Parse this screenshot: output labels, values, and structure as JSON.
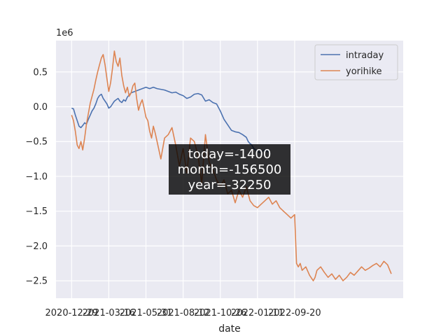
{
  "chart_data": {
    "type": "line",
    "xlabel": "date",
    "ylabel": "",
    "y_scale_label": "1e6",
    "y_scale": 1000000,
    "ylim": [
      -2.75,
      0.95
    ],
    "xlim": [
      -0.42,
      8.92
    ],
    "yticks": [
      0.5,
      0.0,
      -0.5,
      -1.0,
      -1.5,
      -2.0,
      -2.5
    ],
    "ytick_labels": [
      "0.5",
      "0.0",
      "−0.5",
      "−1.0",
      "−1.5",
      "−2.0",
      "−2.5"
    ],
    "x_ticks": [
      0,
      1,
      2,
      3,
      4,
      5,
      6
    ],
    "x_tick_labels": [
      "2020-12-29",
      "2021-03-16",
      "2021-05-31",
      "2021-08-12",
      "2021-10-26",
      "2022-01-11",
      "2022-09-20"
    ],
    "grid": true,
    "legend": "top-right",
    "annotation": {
      "lines": [
        "today=-1400",
        "month=-156500",
        "year=-32250"
      ],
      "position": "center"
    },
    "series": [
      {
        "name": "intraday",
        "color": "#4c72b0",
        "x": [
          0,
          0.05,
          0.1,
          0.15,
          0.2,
          0.25,
          0.3,
          0.35,
          0.4,
          0.45,
          0.5,
          0.55,
          0.6,
          0.65,
          0.7,
          0.75,
          0.8,
          0.85,
          0.9,
          0.95,
          1.0,
          1.05,
          1.1,
          1.15,
          1.2,
          1.25,
          1.3,
          1.35,
          1.4,
          1.45,
          1.5,
          1.6,
          1.7,
          1.8,
          1.9,
          1.95,
          2.0,
          2.1,
          2.2,
          2.3,
          2.4,
          2.5,
          2.6,
          2.7,
          2.8,
          2.9,
          3.0,
          3.1,
          3.2,
          3.3,
          3.4,
          3.5,
          3.6,
          3.7,
          3.8,
          3.9,
          4.0,
          4.1,
          4.2,
          4.3,
          4.4,
          4.5,
          4.6,
          4.7,
          4.75,
          4.8,
          4.85,
          4.9,
          4.95,
          5.0,
          5.05,
          5.1,
          5.15,
          5.2,
          5.25,
          5.3
        ],
        "y": [
          -0.02,
          -0.03,
          -0.12,
          -0.2,
          -0.28,
          -0.3,
          -0.27,
          -0.23,
          -0.25,
          -0.18,
          -0.12,
          -0.06,
          -0.02,
          0.04,
          0.12,
          0.16,
          0.18,
          0.12,
          0.08,
          0.04,
          -0.02,
          0.0,
          0.04,
          0.08,
          0.1,
          0.12,
          0.08,
          0.06,
          0.1,
          0.08,
          0.14,
          0.2,
          0.22,
          0.24,
          0.26,
          0.27,
          0.28,
          0.26,
          0.28,
          0.26,
          0.25,
          0.24,
          0.22,
          0.2,
          0.21,
          0.18,
          0.16,
          0.12,
          0.14,
          0.18,
          0.19,
          0.17,
          0.08,
          0.1,
          0.06,
          0.04,
          -0.06,
          -0.18,
          -0.26,
          -0.34,
          -0.36,
          -0.37,
          -0.4,
          -0.44,
          -0.5,
          -0.53,
          -0.55,
          -0.6,
          -0.62,
          -0.64,
          -0.66,
          -0.65,
          -0.63,
          -0.62,
          -0.64,
          -0.65
        ]
      },
      {
        "name": "yorihike",
        "color": "#dd8452",
        "x": [
          0,
          0.05,
          0.1,
          0.15,
          0.2,
          0.25,
          0.3,
          0.35,
          0.4,
          0.45,
          0.5,
          0.6,
          0.65,
          0.7,
          0.75,
          0.8,
          0.85,
          0.9,
          0.95,
          1.0,
          1.05,
          1.1,
          1.15,
          1.2,
          1.25,
          1.3,
          1.35,
          1.4,
          1.45,
          1.5,
          1.55,
          1.6,
          1.65,
          1.7,
          1.75,
          1.8,
          1.85,
          1.9,
          1.95,
          2.0,
          2.05,
          2.1,
          2.15,
          2.2,
          2.25,
          2.3,
          2.4,
          2.5,
          2.6,
          2.7,
          2.8,
          2.9,
          3.0,
          3.1,
          3.2,
          3.3,
          3.4,
          3.5,
          3.6,
          3.7,
          3.8,
          3.9,
          4.0,
          4.1,
          4.2,
          4.3,
          4.4,
          4.5,
          4.6,
          4.7,
          4.8,
          4.9,
          5.0,
          5.1,
          5.2,
          5.3,
          5.4,
          5.5,
          5.6,
          5.7,
          5.8,
          5.9,
          6.0,
          6.05,
          6.1,
          6.15,
          6.2,
          6.3,
          6.4,
          6.5,
          6.55,
          6.6,
          6.7,
          6.8,
          6.9,
          7.0,
          7.1,
          7.2,
          7.3,
          7.4,
          7.5,
          7.6,
          7.7,
          7.8,
          7.9,
          8.0,
          8.1,
          8.2,
          8.3,
          8.4,
          8.5,
          8.6
        ],
        "y": [
          -0.12,
          -0.2,
          -0.35,
          -0.55,
          -0.6,
          -0.5,
          -0.62,
          -0.45,
          -0.25,
          -0.1,
          0.05,
          0.25,
          0.38,
          0.5,
          0.6,
          0.7,
          0.75,
          0.6,
          0.4,
          0.22,
          0.35,
          0.55,
          0.8,
          0.65,
          0.58,
          0.7,
          0.45,
          0.3,
          0.2,
          0.28,
          0.15,
          0.2,
          0.3,
          0.34,
          0.12,
          -0.05,
          0.04,
          0.1,
          -0.02,
          -0.15,
          -0.2,
          -0.35,
          -0.45,
          -0.28,
          -0.38,
          -0.5,
          -0.75,
          -0.45,
          -0.4,
          -0.3,
          -0.55,
          -0.85,
          -0.6,
          -0.95,
          -0.45,
          -0.5,
          -0.7,
          -1.1,
          -0.4,
          -0.8,
          -0.9,
          -1.05,
          -1.15,
          -1.05,
          -1.25,
          -1.2,
          -1.38,
          -1.2,
          -1.3,
          -1.15,
          -1.35,
          -1.42,
          -1.45,
          -1.4,
          -1.35,
          -1.3,
          -1.4,
          -1.35,
          -1.45,
          -1.5,
          -1.55,
          -1.6,
          -1.55,
          -2.25,
          -2.3,
          -2.25,
          -2.35,
          -2.3,
          -2.42,
          -2.5,
          -2.45,
          -2.35,
          -2.3,
          -2.38,
          -2.45,
          -2.4,
          -2.48,
          -2.42,
          -2.5,
          -2.45,
          -2.38,
          -2.42,
          -2.36,
          -2.3,
          -2.35,
          -2.32,
          -2.28,
          -2.25,
          -2.3,
          -2.22,
          -2.27,
          -2.4
        ]
      }
    ]
  }
}
